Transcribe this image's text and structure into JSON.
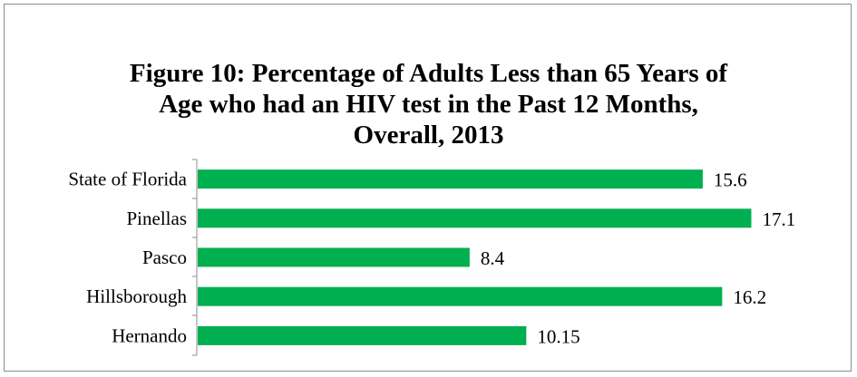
{
  "chart_data": {
    "type": "bar",
    "orientation": "horizontal",
    "title_lines": [
      "Figure 10: Percentage of Adults Less than 65 Years of",
      "Age who had an HIV test in the Past 12 Months,",
      "Overall, 2013"
    ],
    "categories": [
      "State of Florida",
      "Pinellas",
      "Pasco",
      "Hillsborough",
      "Hernando"
    ],
    "values": [
      15.6,
      17.1,
      8.4,
      16.2,
      10.15
    ],
    "value_labels": [
      "15.6",
      "17.1",
      "8.4",
      "16.2",
      "10.15"
    ],
    "xlim": [
      0,
      17.5
    ],
    "grid": false,
    "legend": "none",
    "bar_color": "#00b050"
  }
}
